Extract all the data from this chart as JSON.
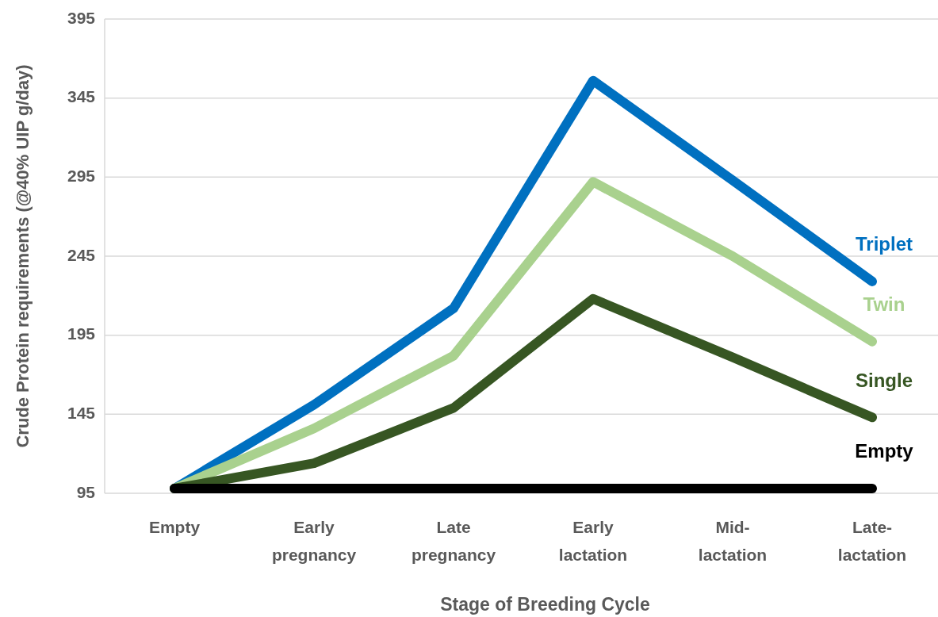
{
  "chart_data": {
    "type": "line",
    "xlabel": "Stage of Breeding Cycle",
    "ylabel": "Crude Protein requirements (@40% UIP  g/day)",
    "categories": [
      "Empty",
      "Early pregnancy",
      "Late pregnancy",
      "Early lactation",
      "Mid-lactation",
      "Late-lactation"
    ],
    "series": [
      {
        "name": "Triplet",
        "color": "#0070c0",
        "values": [
          98,
          151,
          212,
          356,
          293,
          229
        ]
      },
      {
        "name": "Twin",
        "color": "#a9d18e",
        "values": [
          98,
          136,
          182,
          292,
          245,
          191
        ]
      },
      {
        "name": "Single",
        "color": "#375623",
        "values": [
          98,
          114,
          149,
          218,
          181,
          143
        ]
      },
      {
        "name": "Empty",
        "color": "#000000",
        "values": [
          98,
          98,
          98,
          98,
          98,
          98
        ]
      }
    ],
    "ylim": [
      95,
      395
    ],
    "yticks": [
      95,
      145,
      195,
      245,
      295,
      345,
      395
    ],
    "grid": "y",
    "marker": "none",
    "line_style": "solid"
  }
}
